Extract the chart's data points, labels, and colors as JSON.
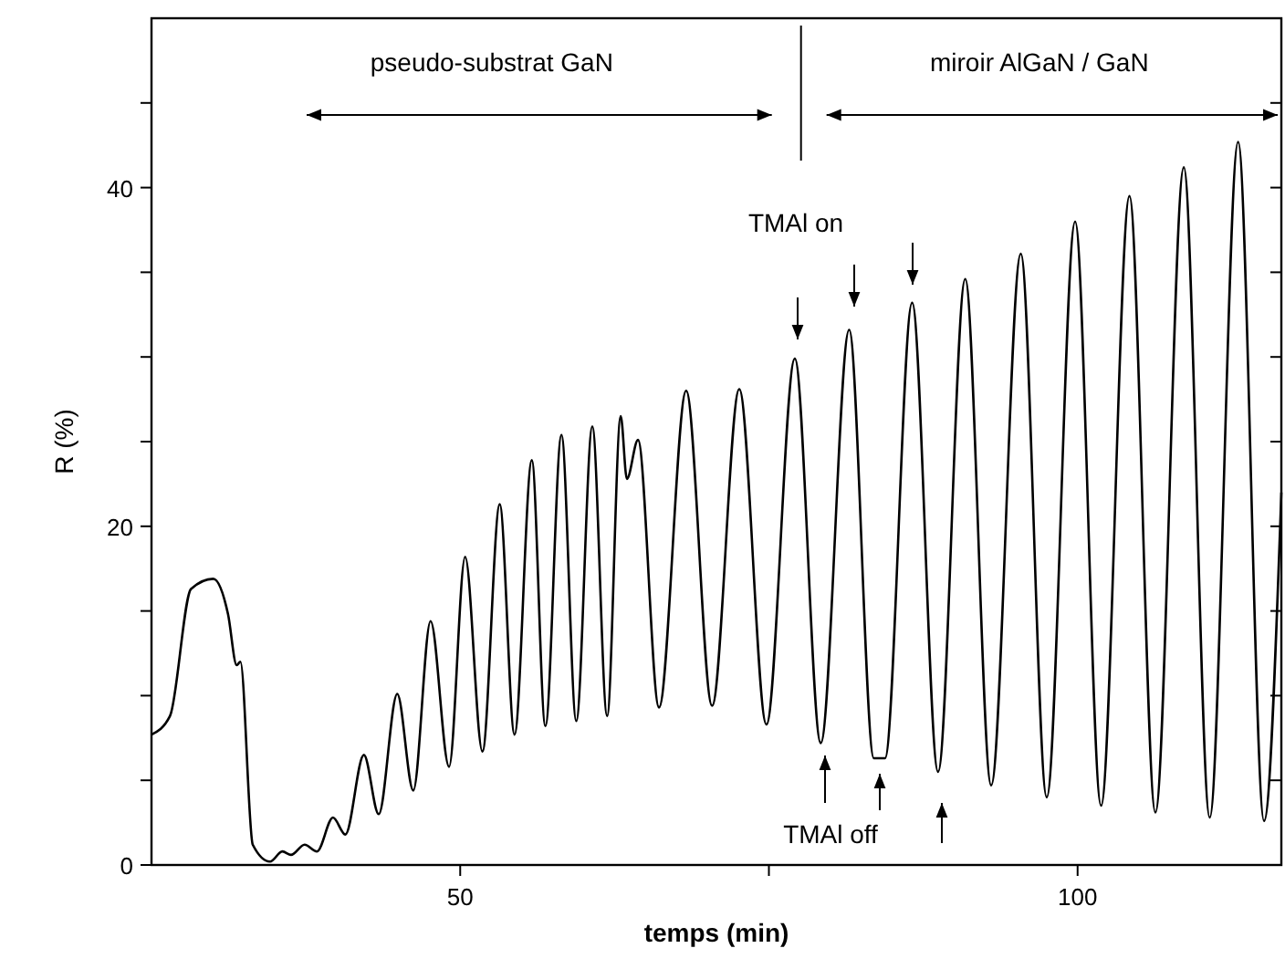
{
  "chart_data": {
    "type": "line",
    "xlabel": "temps (min)",
    "ylabel": "R (%)",
    "xlim": [
      25,
      116.5
    ],
    "ylim": [
      0,
      50
    ],
    "xticks": [
      50,
      {
        "value": 75,
        "label": null
      },
      100
    ],
    "yticks": [
      0,
      {
        "value": 5,
        "label": null
      },
      {
        "value": 10,
        "label": null
      },
      {
        "value": 15,
        "label": null
      },
      20,
      {
        "value": 25,
        "label": null
      },
      {
        "value": 30,
        "label": null
      },
      {
        "value": 35,
        "label": null
      },
      40,
      {
        "value": 45,
        "label": null
      }
    ],
    "grid": false,
    "marker": "none",
    "line_style": "solid",
    "series": [
      {
        "color": "#000000",
        "x": [
          25.0,
          26.5,
          28.2,
          30.0,
          31.2,
          31.9,
          32.2,
          33.2,
          34.6,
          35.6,
          36.3,
          37.4,
          38.4,
          39.7,
          40.7,
          42.2,
          43.4,
          44.9,
          46.2,
          47.6,
          49.1,
          50.4,
          51.8,
          53.2,
          54.4,
          55.8,
          56.9,
          58.2,
          59.4,
          60.7,
          61.9,
          63.0,
          63.5,
          64.4,
          66.1,
          68.3,
          70.4,
          72.6,
          74.8,
          77.1,
          79.2,
          81.5,
          83.5,
          84.4,
          86.6,
          88.7,
          90.9,
          93.0,
          95.4,
          97.5,
          99.8,
          101.9,
          104.2,
          106.3,
          108.6,
          110.7,
          113.0,
          115.1,
          116.5
        ],
        "values": [
          7.7,
          8.8,
          16.3,
          16.9,
          14.8,
          11.8,
          12.0,
          1.2,
          0.2,
          0.8,
          0.6,
          1.2,
          0.8,
          2.8,
          1.8,
          6.5,
          3.0,
          10.1,
          4.4,
          14.4,
          5.8,
          18.2,
          6.7,
          21.3,
          7.7,
          23.9,
          8.2,
          25.4,
          8.5,
          25.9,
          8.8,
          26.5,
          22.8,
          25.1,
          9.3,
          28.0,
          9.4,
          28.1,
          8.3,
          29.9,
          7.2,
          31.6,
          6.3,
          6.3,
          33.2,
          5.5,
          34.6,
          4.7,
          36.1,
          4.0,
          38.0,
          3.5,
          39.5,
          3.1,
          41.2,
          2.8,
          42.7,
          2.6,
          22.0
        ]
      }
    ],
    "ref_lines": [
      {
        "axis": "x",
        "value": 77.6
      }
    ],
    "annotations": [
      "pseudo-substrat GaN",
      "miroir AlGaN / GaN",
      "TMAl on",
      "TMAl off"
    ]
  }
}
